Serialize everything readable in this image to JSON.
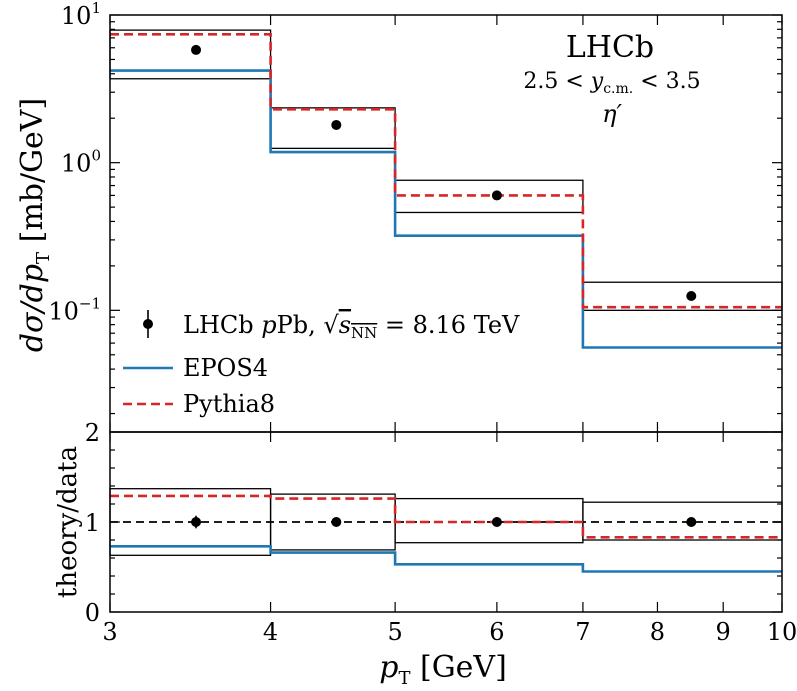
{
  "chart_data": {
    "type": "step",
    "xlabel": "p_T [GeV]",
    "bin_edges": [
      3,
      4,
      5,
      7,
      10
    ],
    "bin_centers": [
      3.5,
      4.5,
      6.0,
      8.5
    ],
    "x_ticks": [
      "3",
      "4",
      "5",
      "6",
      "7",
      "8",
      "9",
      "10"
    ],
    "x_tick_values": [
      3,
      4,
      5,
      6,
      7,
      8,
      9,
      10
    ],
    "colors": {
      "data": "#000000",
      "epos": "#1f77b4",
      "pythia": "#d62728",
      "box": "#000000"
    },
    "top": {
      "ylabel_math": "dσ/dp",
      "ylabel_sub": "T",
      "ylabel_unit": "[mb/GeV]",
      "yscale": "log",
      "ylim": [
        0.015,
        10
      ],
      "y_ticks": [
        {
          "value": 10,
          "base": "10",
          "exp": "1"
        },
        {
          "value": 1,
          "base": "10",
          "exp": "0"
        },
        {
          "value": 0.1,
          "base": "10",
          "exp": "−1"
        }
      ],
      "experiment": "LHCb",
      "rapidity": {
        "lo": "2.5",
        "var": "y",
        "sub": "c.m.",
        "hi": "3.5"
      },
      "particle": "η′",
      "legend": [
        {
          "key": "data",
          "text_pre": "LHCb ",
          "text_p": "p",
          "text_mid": "Pb, ",
          "text_sqrt": "√",
          "text_s": "s",
          "text_sub": "NN",
          "text_post": " = 8.16 TeV"
        },
        {
          "key": "epos",
          "text": "EPOS4"
        },
        {
          "key": "pythia",
          "text": "Pythia8"
        }
      ],
      "series": [
        {
          "name": "LHCb pPb data",
          "x": [
            3.5,
            4.5,
            6.0,
            8.5
          ],
          "y": [
            5.8,
            1.8,
            0.6,
            0.125
          ]
        },
        {
          "name": "EPOS4",
          "values": [
            4.2,
            1.18,
            0.32,
            0.056
          ]
        },
        {
          "name": "Pythia8",
          "values": [
            7.4,
            2.3,
            0.6,
            0.105
          ]
        }
      ],
      "uncertainty_boxes": [
        {
          "lo": 3.7,
          "hi": 7.9
        },
        {
          "lo": 1.25,
          "hi": 2.35
        },
        {
          "lo": 0.46,
          "hi": 0.76
        },
        {
          "lo": 0.1,
          "hi": 0.155
        }
      ]
    },
    "ratio": {
      "ylabel": "theory/data",
      "ylim": [
        0,
        2
      ],
      "y_ticks": [
        "0",
        "1",
        "2"
      ],
      "y_tick_values": [
        0,
        1,
        2
      ],
      "reference_line": 1,
      "series": [
        {
          "name": "data",
          "x": [
            3.5,
            4.5,
            6.0,
            8.5
          ],
          "y": [
            1.0,
            1.0,
            1.0,
            1.0
          ],
          "err": [
            0.07,
            0.05,
            0.04,
            0.04
          ]
        },
        {
          "name": "EPOS4",
          "values": [
            0.73,
            0.66,
            0.53,
            0.45
          ]
        },
        {
          "name": "Pythia8",
          "values": [
            1.29,
            1.26,
            1.0,
            0.83
          ]
        }
      ],
      "uncertainty_boxes": [
        {
          "lo": 0.63,
          "hi": 1.37
        },
        {
          "lo": 0.69,
          "hi": 1.31
        },
        {
          "lo": 0.77,
          "hi": 1.26
        },
        {
          "lo": 0.8,
          "hi": 1.22
        }
      ]
    }
  }
}
